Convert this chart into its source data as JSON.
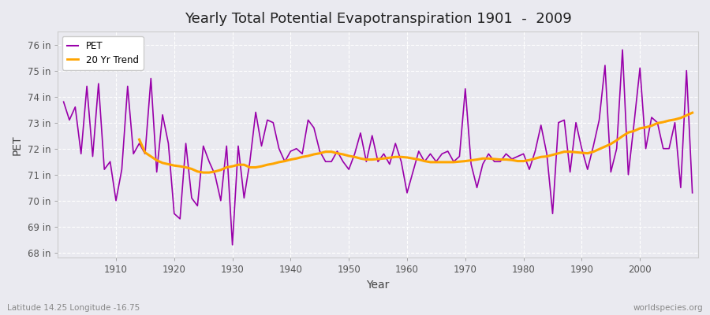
{
  "title": "Yearly Total Potential Evapotranspiration 1901  -  2009",
  "xlabel": "Year",
  "ylabel": "PET",
  "bottom_left": "Latitude 14.25 Longitude -16.75",
  "bottom_right": "worldspecies.org",
  "pet_color": "#9900AA",
  "trend_color": "#FFA500",
  "background_color": "#EAEAF0",
  "grid_color": "#FFFFFF",
  "ylim": [
    67.8,
    76.5
  ],
  "yticks": [
    68,
    69,
    70,
    71,
    72,
    73,
    74,
    75,
    76
  ],
  "ytick_labels": [
    "68 in",
    "69 in",
    "70 in",
    "71 in",
    "72 in",
    "73 in",
    "74 in",
    "75 in",
    "76 in"
  ],
  "xlim": [
    1900,
    2010
  ],
  "xticks": [
    1910,
    1920,
    1930,
    1940,
    1950,
    1960,
    1970,
    1980,
    1990,
    2000
  ],
  "years": [
    1901,
    1902,
    1903,
    1904,
    1905,
    1906,
    1907,
    1908,
    1909,
    1910,
    1911,
    1912,
    1913,
    1914,
    1915,
    1916,
    1917,
    1918,
    1919,
    1920,
    1921,
    1922,
    1923,
    1924,
    1925,
    1926,
    1927,
    1928,
    1929,
    1930,
    1931,
    1932,
    1933,
    1934,
    1935,
    1936,
    1937,
    1938,
    1939,
    1940,
    1941,
    1942,
    1943,
    1944,
    1945,
    1946,
    1947,
    1948,
    1949,
    1950,
    1951,
    1952,
    1953,
    1954,
    1955,
    1956,
    1957,
    1958,
    1959,
    1960,
    1961,
    1962,
    1963,
    1964,
    1965,
    1966,
    1967,
    1968,
    1969,
    1970,
    1971,
    1972,
    1973,
    1974,
    1975,
    1976,
    1977,
    1978,
    1979,
    1980,
    1981,
    1982,
    1983,
    1984,
    1985,
    1986,
    1987,
    1988,
    1989,
    1990,
    1991,
    1992,
    1993,
    1994,
    1995,
    1996,
    1997,
    1998,
    1999,
    2000,
    2001,
    2002,
    2003,
    2004,
    2005,
    2006,
    2007,
    2008,
    2009
  ],
  "pet_values": [
    73.8,
    73.1,
    73.6,
    71.8,
    74.4,
    71.7,
    74.5,
    71.2,
    71.5,
    70.0,
    71.2,
    74.4,
    71.8,
    72.2,
    71.8,
    74.7,
    71.1,
    73.3,
    72.2,
    69.5,
    69.3,
    72.2,
    70.1,
    69.8,
    72.1,
    71.5,
    71.0,
    70.0,
    72.1,
    68.3,
    72.1,
    70.1,
    71.5,
    73.4,
    72.1,
    73.1,
    73.0,
    72.0,
    71.5,
    71.9,
    72.0,
    71.8,
    73.1,
    72.8,
    71.9,
    71.5,
    71.5,
    71.9,
    71.5,
    71.2,
    71.8,
    72.6,
    71.5,
    72.5,
    71.5,
    71.8,
    71.4,
    72.2,
    71.5,
    70.3,
    71.1,
    71.9,
    71.5,
    71.8,
    71.5,
    71.8,
    71.9,
    71.5,
    71.7,
    74.3,
    71.4,
    70.5,
    71.4,
    71.8,
    71.5,
    71.5,
    71.8,
    71.6,
    71.7,
    71.8,
    71.2,
    71.9,
    72.9,
    71.8,
    69.5,
    73.0,
    73.1,
    71.1,
    73.0,
    72.0,
    71.2,
    72.1,
    73.1,
    75.2,
    71.1,
    72.0,
    75.8,
    71.0,
    73.0,
    75.1,
    72.0,
    73.2,
    73.0,
    72.0,
    72.0,
    73.0,
    70.5,
    75.0,
    70.3
  ],
  "trend_start_year": 1914,
  "trend_values_from1914": [
    72.35,
    71.85,
    71.7,
    71.55,
    71.45,
    71.4,
    71.35,
    71.32,
    71.28,
    71.22,
    71.12,
    71.08,
    71.08,
    71.12,
    71.18,
    71.28,
    71.32,
    71.38,
    71.38,
    71.28,
    71.28,
    71.32,
    71.38,
    71.42,
    71.48,
    71.52,
    71.58,
    71.62,
    71.68,
    71.72,
    71.78,
    71.82,
    71.88,
    71.88,
    71.82,
    71.78,
    71.72,
    71.68,
    71.62,
    71.58,
    71.58,
    71.6,
    71.62,
    71.65,
    71.68,
    71.68,
    71.66,
    71.62,
    71.58,
    71.52,
    71.48,
    71.48,
    71.48,
    71.48,
    71.48,
    71.5,
    71.52,
    71.55,
    71.58,
    71.62,
    71.62,
    71.6,
    71.58,
    71.58,
    71.56,
    71.52,
    71.52,
    71.56,
    71.62,
    71.68,
    71.7,
    71.76,
    71.82,
    71.88,
    71.88,
    71.86,
    71.84,
    71.82,
    71.88,
    71.98,
    72.08,
    72.18,
    72.32,
    72.48,
    72.62,
    72.68,
    72.78,
    72.82,
    72.88,
    72.98,
    73.02,
    73.08,
    73.12,
    73.18,
    73.28,
    73.38
  ]
}
